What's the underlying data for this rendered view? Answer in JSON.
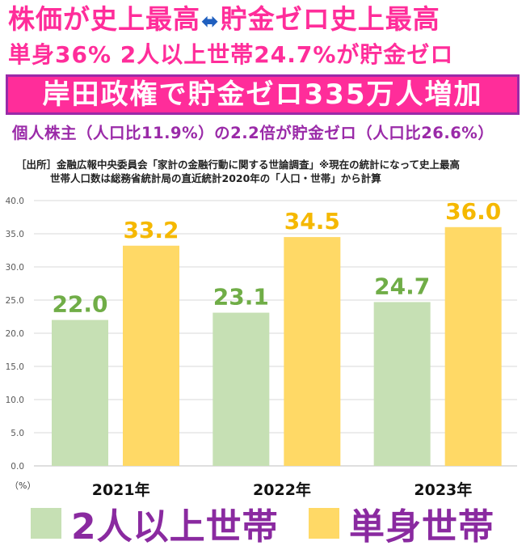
{
  "headline": {
    "line1_left": "株価が史上最高",
    "line1_arrow": "⬌",
    "line1_right": "貯金ゼロ史上最高",
    "line2": "単身36% 2人以上世帯24.7%が貯金ゼロ",
    "banner": "岸田政権で貯金ゼロ335万人増加",
    "line4": "個人株主（人口比11.9%）の2.2倍が貯金ゼロ（人口比26.6%）"
  },
  "source": {
    "line1": "［出所］金融広報中央委員会「家計の金融行動に関する世論調査」※現在の統計になって史上最高",
    "line2": "世帯人口数は総務省統計局の直近統計2020年の「人口・世帯」から計算"
  },
  "legend": {
    "series_a": "2人以上世帯",
    "series_b": "単身世帯"
  },
  "colors": {
    "pink": "#ff2d9a",
    "purple": "#9a2aa8",
    "arrow_blue": "#1f5fbf",
    "series_a": "#c6e0b4",
    "series_a_label": "#70ad47",
    "series_b": "#ffd966",
    "series_b_label": "#f5b800"
  },
  "chart_data": {
    "type": "bar",
    "categories": [
      "2021年",
      "2022年",
      "2023年"
    ],
    "series": [
      {
        "name": "2人以上世帯",
        "values": [
          22.0,
          23.1,
          24.7
        ],
        "color": "#c6e0b4",
        "label_color": "#70ad47"
      },
      {
        "name": "単身世帯",
        "values": [
          33.2,
          34.5,
          36.0
        ],
        "color": "#ffd966",
        "label_color": "#f5b800"
      }
    ],
    "y_ticks": [
      "0.0",
      "5.0",
      "10.0",
      "15.0",
      "20.0",
      "25.0",
      "30.0",
      "35.0",
      "40.0"
    ],
    "ylim": [
      0,
      40
    ],
    "yunit": "（%）",
    "grid": true
  }
}
